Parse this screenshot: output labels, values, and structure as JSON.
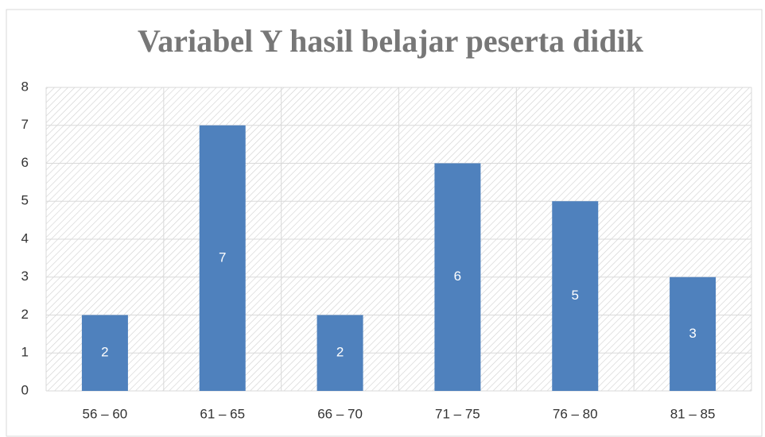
{
  "chart_data": {
    "type": "bar",
    "title": "Variabel Y hasil belajar peserta didik",
    "categories": [
      "56 – 60",
      "61 – 65",
      "66 – 70",
      "71 – 75",
      "76 – 80",
      "81 – 85"
    ],
    "values": [
      2,
      7,
      2,
      6,
      5,
      3
    ],
    "color": "#4f81bd",
    "ylim": [
      0,
      8
    ],
    "yticks": [
      0,
      1,
      2,
      3,
      4,
      5,
      6,
      7,
      8
    ],
    "grid": true,
    "data_labels": true
  }
}
